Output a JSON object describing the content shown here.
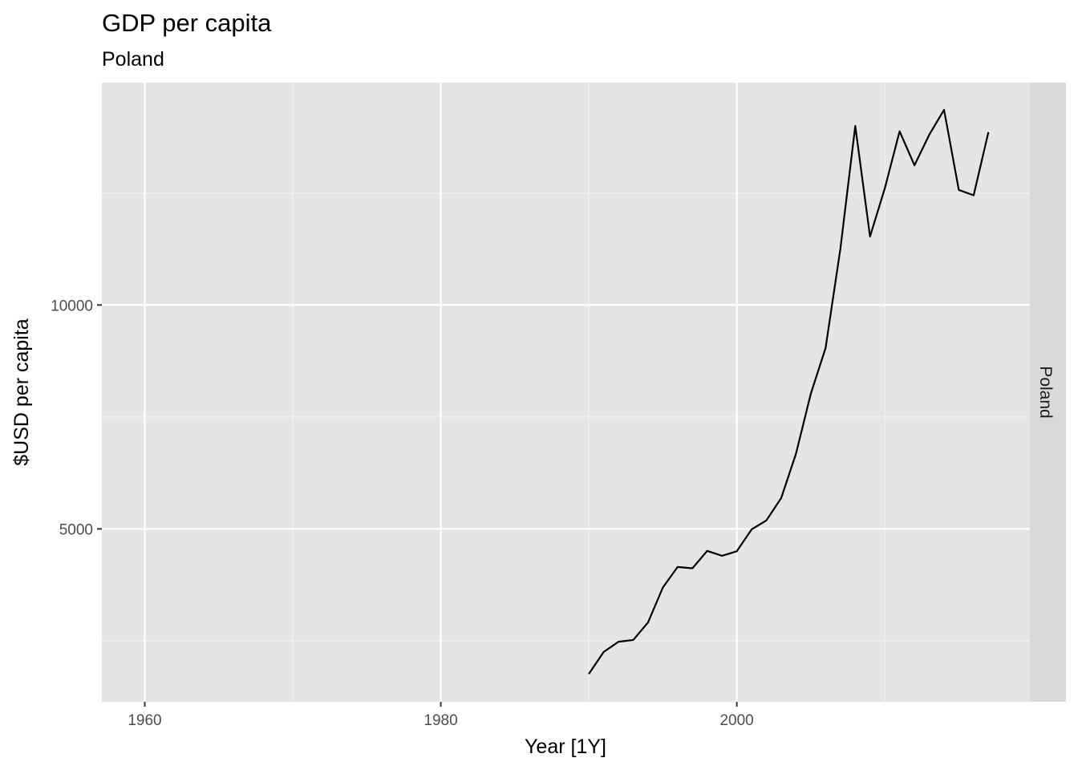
{
  "chart_data": {
    "type": "line",
    "title": "GDP per capita",
    "subtitle": "Poland",
    "xlabel": "Year [1Y]",
    "ylabel": "$USD per capita",
    "facet_label": "Poland",
    "xlim": [
      1957.1,
      2019.8
    ],
    "ylim": [
      1138,
      14967
    ],
    "x_ticks": [
      1960,
      1980,
      2000
    ],
    "x_tick_labels": [
      "1960",
      "1980",
      "2000"
    ],
    "x_minor_ticks": [
      1970,
      1990,
      2010
    ],
    "y_ticks": [
      5000,
      10000
    ],
    "y_tick_labels": [
      "5000",
      "10000"
    ],
    "y_minor_ticks": [
      2500,
      7500,
      12500
    ],
    "grid": true,
    "line_color": "#000000",
    "series": [
      {
        "x": [
          1990,
          1991,
          1992,
          1993,
          1994,
          1995,
          1996,
          1997,
          1998,
          1999,
          2000,
          2001,
          2002,
          2003,
          2004,
          2005,
          2006,
          2007,
          2008,
          2009,
          2010,
          2011,
          2012,
          2013,
          2014,
          2015,
          2016,
          2017
        ],
        "y": [
          1760,
          2250,
          2480,
          2520,
          2910,
          3690,
          4150,
          4120,
          4510,
          4400,
          4500,
          4990,
          5190,
          5690,
          6680,
          8020,
          9040,
          11260,
          14000,
          11530,
          12610,
          13880,
          13120,
          13800,
          14360,
          12570,
          12450,
          13860
        ]
      }
    ]
  }
}
